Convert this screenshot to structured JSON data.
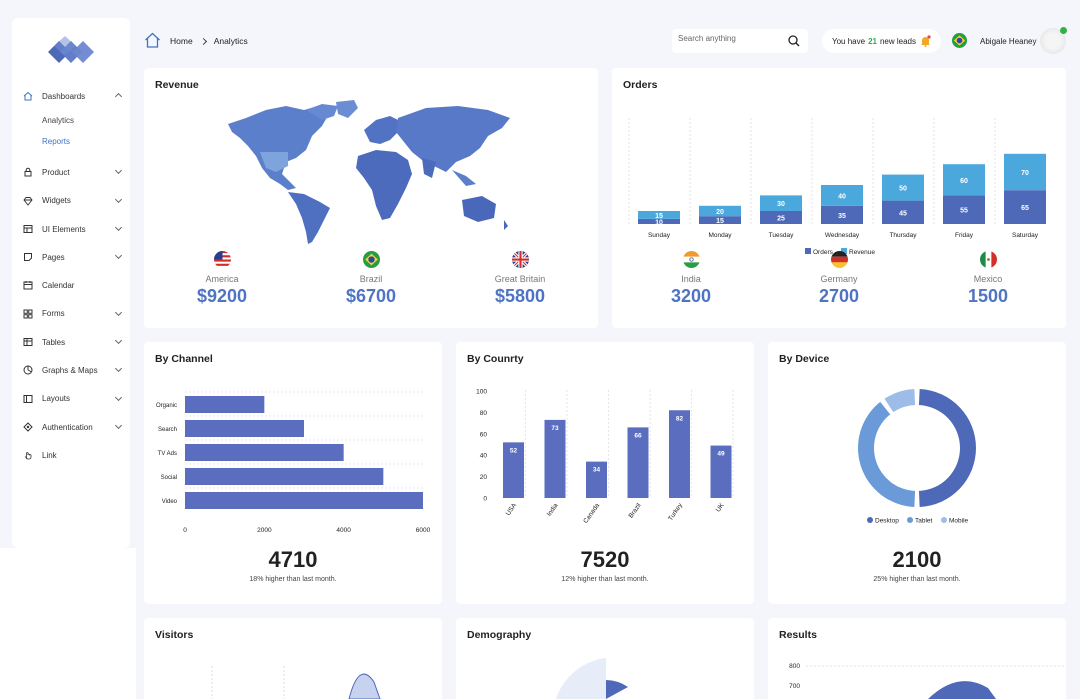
{
  "header": {
    "breadcrumb": [
      "Home",
      "Analytics"
    ],
    "search_placeholder": "Search anything",
    "leads_prefix": "You have",
    "leads_count": "21",
    "leads_suffix": "new leads",
    "user_name": "Abigale Heaney"
  },
  "sidebar": {
    "items": [
      {
        "label": "Dashboards",
        "icon": "home-icon",
        "expanded": true
      },
      {
        "label": "Product",
        "icon": "lock-icon"
      },
      {
        "label": "Widgets",
        "icon": "diamond-icon"
      },
      {
        "label": "UI Elements",
        "icon": "layout-icon"
      },
      {
        "label": "Pages",
        "icon": "note-icon"
      },
      {
        "label": "Calendar",
        "icon": "calendar-icon"
      },
      {
        "label": "Forms",
        "icon": "grid-icon"
      },
      {
        "label": "Tables",
        "icon": "table-icon"
      },
      {
        "label": "Graphs & Maps",
        "icon": "pie-icon"
      },
      {
        "label": "Layouts",
        "icon": "layouts-icon"
      },
      {
        "label": "Authentication",
        "icon": "auth-icon"
      },
      {
        "label": "Link",
        "icon": "hand-icon"
      }
    ],
    "sub_items": [
      "Analytics",
      "Reports"
    ]
  },
  "revenue": {
    "title": "Revenue",
    "stats": [
      {
        "country": "America",
        "value": "$9200",
        "flag": "us-flag-icon"
      },
      {
        "country": "Brazil",
        "value": "$6700",
        "flag": "brazil-flag-icon"
      },
      {
        "country": "Great Britain",
        "value": "$5800",
        "flag": "uk-flag-icon"
      }
    ]
  },
  "orders": {
    "title": "Orders",
    "stats": [
      {
        "country": "India",
        "value": "3200",
        "flag": "india-flag-icon"
      },
      {
        "country": "Germany",
        "value": "2700",
        "flag": "germany-flag-icon"
      },
      {
        "country": "Mexico",
        "value": "1500",
        "flag": "mexico-flag-icon"
      }
    ]
  },
  "channel": {
    "title": "By Channel",
    "big": "4710",
    "sub": "18% higher than last month."
  },
  "country": {
    "title": "By Counrty",
    "big": "7520",
    "sub": "12% higher than last month."
  },
  "device": {
    "title": "By Device",
    "big": "2100",
    "sub": "25% higher than last month."
  },
  "bottom_cards": [
    "Visitors",
    "Demography",
    "Results"
  ],
  "colors": {
    "primary": "#4e69b8",
    "light": "#4aa8dc",
    "accent": "#5b6dbf",
    "device_light": "#6a9ad8",
    "device_pale": "#9dbde8"
  },
  "chart_data": [
    {
      "id": "orders",
      "type": "bar",
      "stacked": true,
      "categories": [
        "Sunday",
        "Monday",
        "Tuesday",
        "Wednesday",
        "Thursday",
        "Friday",
        "Saturday"
      ],
      "series": [
        {
          "name": "Orders",
          "values": [
            10,
            15,
            25,
            35,
            45,
            55,
            65
          ]
        },
        {
          "name": "Revenue",
          "values": [
            15,
            20,
            30,
            40,
            50,
            60,
            70
          ]
        }
      ],
      "legend": "bottom"
    },
    {
      "id": "channel",
      "type": "bar",
      "orientation": "horizontal",
      "categories": [
        "Organic",
        "Search",
        "TV Ads",
        "Social",
        "Video"
      ],
      "values": [
        2000,
        3000,
        4000,
        5000,
        6000
      ],
      "xlim": [
        0,
        6000
      ],
      "xticks": [
        0,
        2000,
        4000,
        6000
      ]
    },
    {
      "id": "country",
      "type": "bar",
      "categories": [
        "USA",
        "India",
        "Canada",
        "Brazil",
        "Turkey",
        "UK"
      ],
      "values": [
        52,
        73,
        34,
        66,
        82,
        49
      ],
      "ylim": [
        0,
        100
      ],
      "yticks": [
        0,
        20,
        40,
        60,
        80,
        100
      ]
    },
    {
      "id": "device",
      "type": "pie",
      "donut": true,
      "labels": [
        "Desktop",
        "Tablet",
        "Mobile"
      ],
      "values": [
        50,
        40,
        10
      ],
      "legend": "bottom"
    },
    {
      "id": "results",
      "type": "line",
      "yticks": [
        700,
        800
      ]
    }
  ]
}
